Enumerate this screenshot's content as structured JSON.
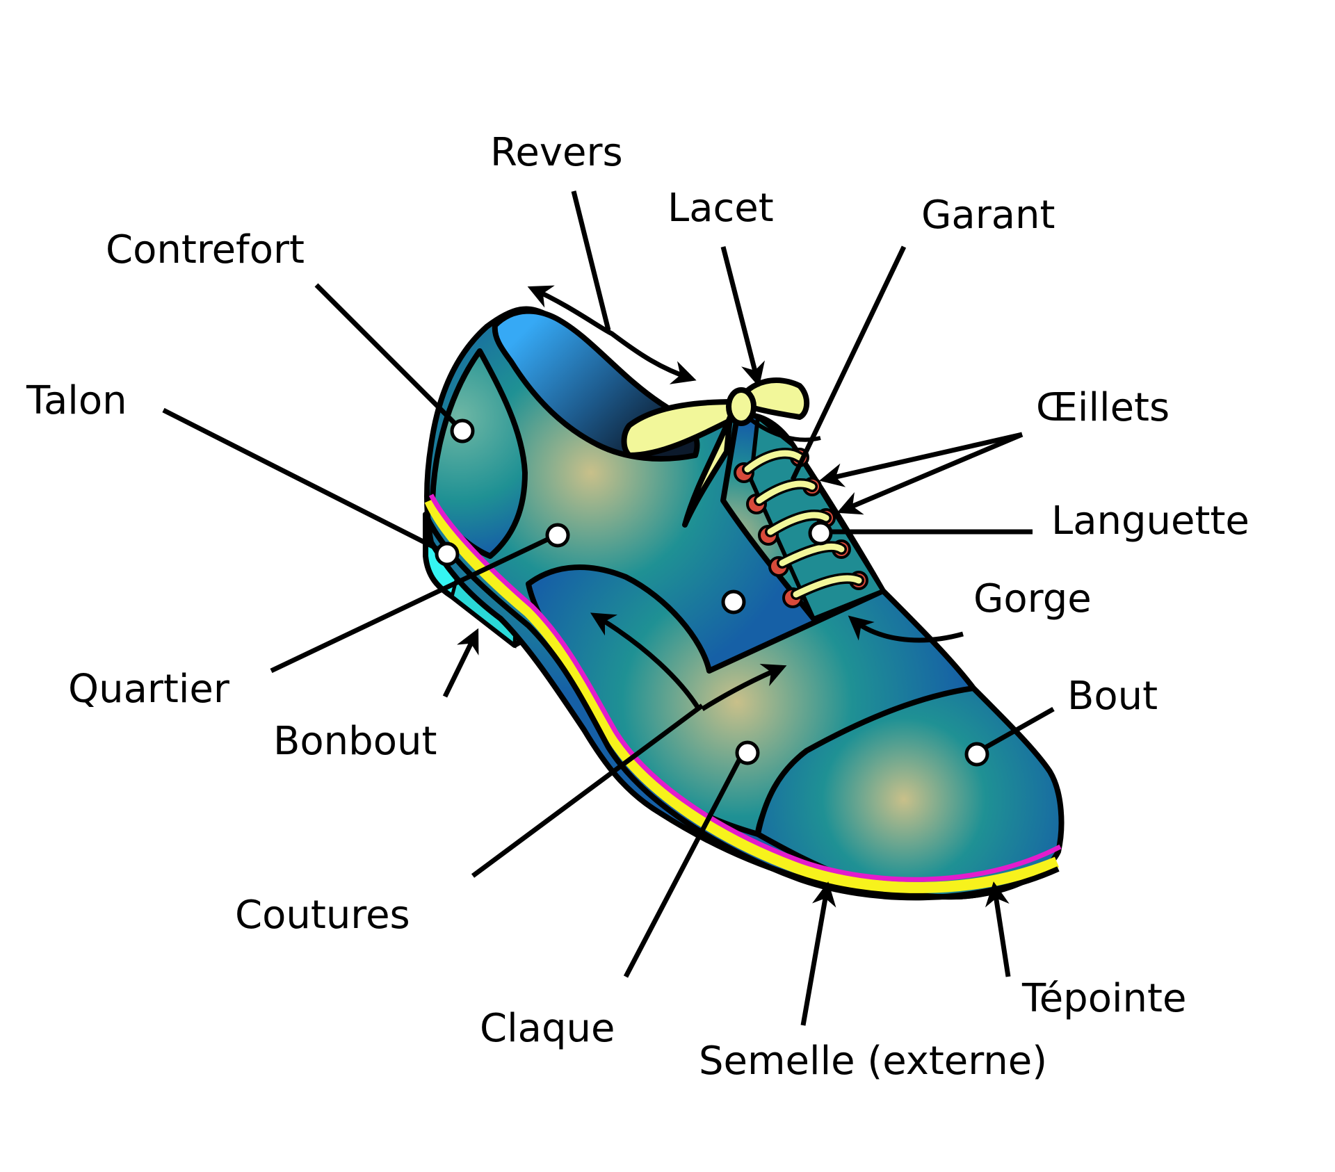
{
  "labels": {
    "revers": "Revers",
    "lacet": "Lacet",
    "garant": "Garant",
    "contrefort": "Contrefort",
    "talon": "Talon",
    "oeillets": "Œillets",
    "languette": "Languette",
    "gorge": "Gorge",
    "quartier": "Quartier",
    "bonbout": "Bonbout",
    "bout": "Bout",
    "coutures": "Coutures",
    "claque": "Claque",
    "tepointe": "Tépointe",
    "semelle": "Semelle (externe)"
  },
  "colors": {
    "upper_light": "#c9c08a",
    "upper_mid": "#1f9194",
    "upper_dark": "#1660a6",
    "collar_light": "#36a9f5",
    "lining_dark": "#0c1a2c",
    "lace": "#f2f79a",
    "eyelet": "#d84a3a",
    "heel": "#35f4f2",
    "welt_magenta": "#e31ccc",
    "welt_yellow": "#f7f21c"
  }
}
